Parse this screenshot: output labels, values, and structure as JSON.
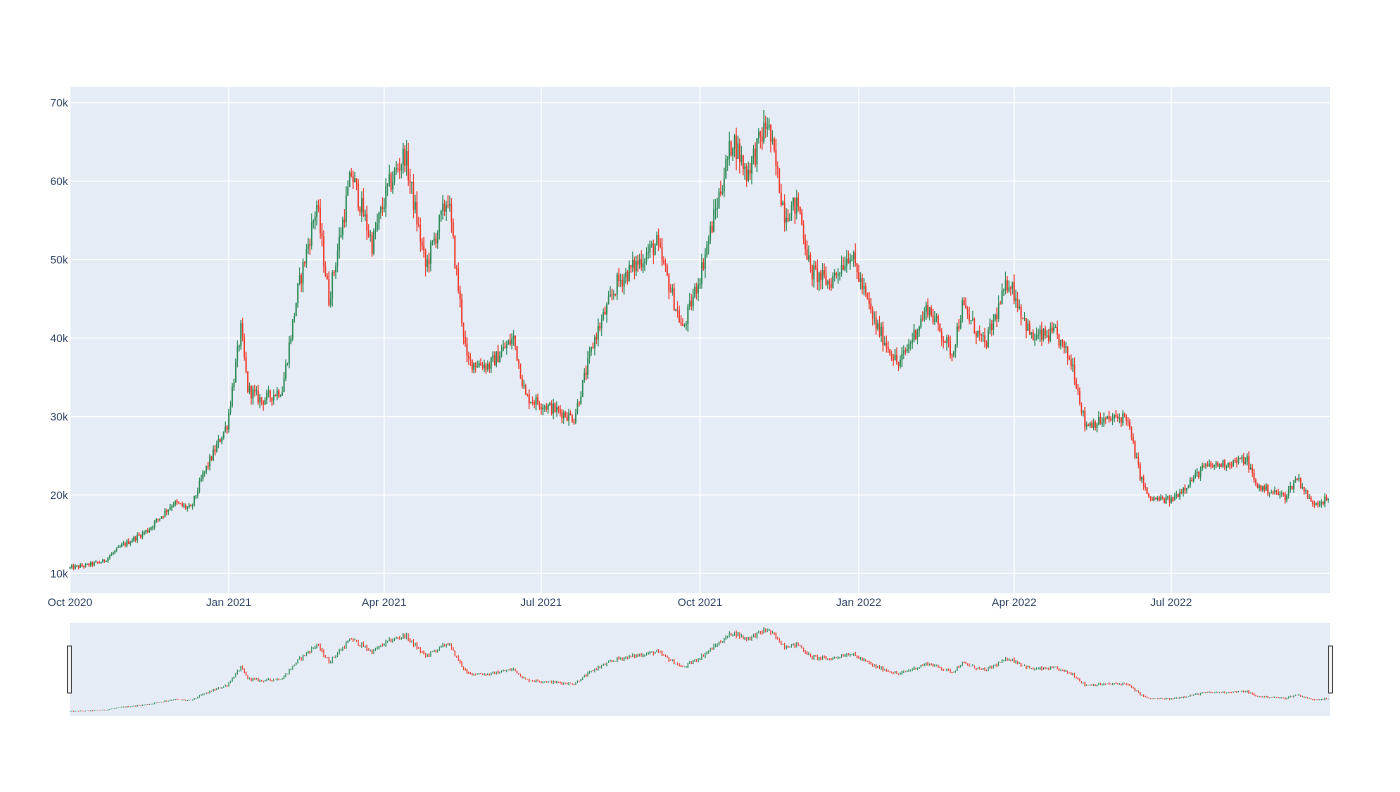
{
  "chart_data": {
    "type": "candlestick",
    "title": "",
    "xlabel": "",
    "ylabel": "",
    "x_range": [
      "2020-10-01",
      "2022-10-01"
    ],
    "ylim": [
      7500,
      72000
    ],
    "y_ticks": [
      10000,
      20000,
      30000,
      40000,
      50000,
      60000,
      70000
    ],
    "y_tick_labels": [
      "10k",
      "20k",
      "30k",
      "40k",
      "50k",
      "60k",
      "70k"
    ],
    "x_ticks": [
      "2020-10-01",
      "2021-01-01",
      "2021-04-01",
      "2021-07-01",
      "2021-10-01",
      "2022-01-01",
      "2022-04-01",
      "2022-07-01"
    ],
    "x_tick_labels": [
      "Oct 2020",
      "Jan 2021",
      "Apr 2021",
      "Jul 2021",
      "Oct 2021",
      "Jan 2022",
      "Apr 2022",
      "Jul 2022"
    ],
    "grid": true,
    "legend": false,
    "rangeslider": true,
    "colors": {
      "increasing": "#2e8b57",
      "decreasing": "#ef3b2c",
      "plot_bg": "#e5ecf6",
      "grid": "#ffffff",
      "text": "#2a3f5f"
    },
    "series": [
      {
        "close_anchors": [
          [
            "2020-10-01",
            10700
          ],
          [
            "2020-10-10",
            11000
          ],
          [
            "2020-10-20",
            11500
          ],
          [
            "2020-10-31",
            13500
          ],
          [
            "2020-11-15",
            15500
          ],
          [
            "2020-11-30",
            19000
          ],
          [
            "2020-12-10",
            18200
          ],
          [
            "2020-12-17",
            22500
          ],
          [
            "2020-12-31",
            29000
          ],
          [
            "2021-01-08",
            41000
          ],
          [
            "2021-01-12",
            33500
          ],
          [
            "2021-01-20",
            32000
          ],
          [
            "2021-02-01",
            33500
          ],
          [
            "2021-02-10",
            46000
          ],
          [
            "2021-02-21",
            57000
          ],
          [
            "2021-02-28",
            45000
          ],
          [
            "2021-03-13",
            61000
          ],
          [
            "2021-03-25",
            52000
          ],
          [
            "2021-04-03",
            59000
          ],
          [
            "2021-04-13",
            63500
          ],
          [
            "2021-04-25",
            49000
          ],
          [
            "2021-05-08",
            58000
          ],
          [
            "2021-05-12",
            50000
          ],
          [
            "2021-05-19",
            37000
          ],
          [
            "2021-06-01",
            36500
          ],
          [
            "2021-06-15",
            40000
          ],
          [
            "2021-06-22",
            32500
          ],
          [
            "2021-07-20",
            29800
          ],
          [
            "2021-08-01",
            40000
          ],
          [
            "2021-08-14",
            47000
          ],
          [
            "2021-09-06",
            52000
          ],
          [
            "2021-09-21",
            41000
          ],
          [
            "2021-10-01",
            48000
          ],
          [
            "2021-10-20",
            65500
          ],
          [
            "2021-10-28",
            61000
          ],
          [
            "2021-11-09",
            67500
          ],
          [
            "2021-11-19",
            56000
          ],
          [
            "2021-11-27",
            57000
          ],
          [
            "2021-12-04",
            48500
          ],
          [
            "2021-12-15",
            47000
          ],
          [
            "2021-12-27",
            51000
          ],
          [
            "2022-01-10",
            42000
          ],
          [
            "2022-01-24",
            36500
          ],
          [
            "2022-02-10",
            44000
          ],
          [
            "2022-02-24",
            38000
          ],
          [
            "2022-03-02",
            44000
          ],
          [
            "2022-03-15",
            39000
          ],
          [
            "2022-03-29",
            47500
          ],
          [
            "2022-04-11",
            40000
          ],
          [
            "2022-04-25",
            40500
          ],
          [
            "2022-05-05",
            36500
          ],
          [
            "2022-05-12",
            29000
          ],
          [
            "2022-06-05",
            30000
          ],
          [
            "2022-06-13",
            22500
          ],
          [
            "2022-06-18",
            19500
          ],
          [
            "2022-07-01",
            19300
          ],
          [
            "2022-07-20",
            23500
          ],
          [
            "2022-08-14",
            24500
          ],
          [
            "2022-08-19",
            21200
          ],
          [
            "2022-09-05",
            19800
          ],
          [
            "2022-09-12",
            22300
          ],
          [
            "2022-09-20",
            19000
          ],
          [
            "2022-09-30",
            19400
          ]
        ]
      }
    ]
  }
}
